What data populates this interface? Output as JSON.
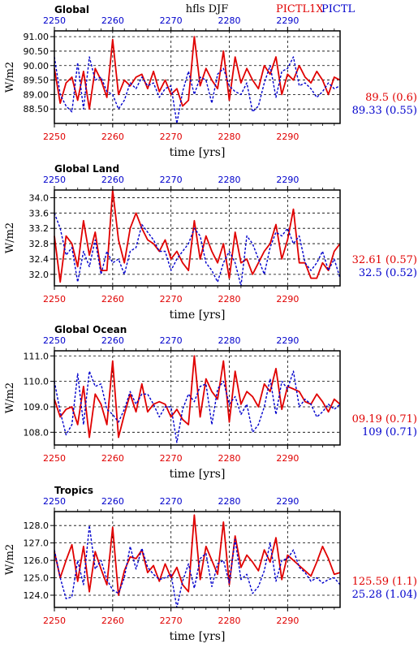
{
  "header": {
    "title": "hfls DJF",
    "legend_red": "PICTL1X",
    "legend_blue": "PICTL",
    "color_red": "#e00000",
    "color_blue": "#0000cc"
  },
  "chart_data": [
    {
      "type": "line",
      "title": "Global",
      "xlabel": "time [yrs]",
      "ylabel": "W/m2",
      "xlim": [
        2250,
        2299
      ],
      "ylim": [
        88.0,
        91.2
      ],
      "yticks": [
        "88.50",
        "89.00",
        "89.50",
        "90.00",
        "90.50",
        "91.00"
      ],
      "xticks": [
        "2250",
        "2260",
        "2270",
        "2280",
        "2290"
      ],
      "grid": true,
      "stat_red": "89.5 (0.6)",
      "stat_blue": "89.33 (0.55)",
      "series": [
        {
          "name": "PICTL1X",
          "color": "#e00000",
          "x": [
            2250,
            2251,
            2252,
            2253,
            2254,
            2255,
            2256,
            2257,
            2258,
            2259,
            2260,
            2261,
            2262,
            2263,
            2264,
            2265,
            2266,
            2267,
            2268,
            2269,
            2270,
            2271,
            2272,
            2273,
            2274,
            2275,
            2276,
            2277,
            2278,
            2279,
            2280,
            2281,
            2282,
            2283,
            2284,
            2285,
            2286,
            2287,
            2288,
            2289,
            2290,
            2291,
            2292,
            2293,
            2294,
            2295,
            2296,
            2297,
            2298,
            2299
          ],
          "values": [
            89.9,
            88.7,
            89.4,
            89.6,
            88.8,
            89.8,
            88.5,
            89.9,
            89.5,
            88.9,
            90.9,
            89.0,
            89.5,
            89.3,
            89.6,
            89.7,
            89.2,
            89.8,
            89.1,
            89.5,
            89.0,
            89.2,
            88.6,
            88.8,
            91.0,
            89.3,
            89.9,
            89.5,
            89.2,
            90.5,
            88.8,
            90.3,
            89.4,
            89.9,
            89.5,
            89.2,
            90.0,
            89.7,
            90.3,
            89.0,
            89.7,
            89.5,
            90.0,
            89.6,
            89.4,
            89.8,
            89.5,
            89.0,
            89.6,
            89.5
          ]
        },
        {
          "name": "PICTL",
          "color": "#0000cc",
          "x": [
            2250,
            2251,
            2252,
            2253,
            2254,
            2255,
            2256,
            2257,
            2258,
            2259,
            2260,
            2261,
            2262,
            2263,
            2264,
            2265,
            2266,
            2267,
            2268,
            2269,
            2270,
            2271,
            2272,
            2273,
            2274,
            2275,
            2276,
            2277,
            2278,
            2279,
            2280,
            2281,
            2282,
            2283,
            2284,
            2285,
            2286,
            2287,
            2288,
            2289,
            2290,
            2291,
            2292,
            2293,
            2294,
            2295,
            2296,
            2297,
            2298,
            2299
          ],
          "values": [
            90.3,
            89.0,
            88.6,
            88.4,
            90.1,
            88.5,
            90.3,
            89.5,
            89.6,
            89.1,
            89.0,
            88.5,
            88.8,
            89.4,
            89.2,
            89.6,
            89.3,
            89.4,
            88.9,
            89.2,
            89.3,
            88.0,
            89.1,
            89.8,
            89.0,
            89.6,
            89.5,
            88.7,
            89.7,
            89.9,
            89.3,
            89.1,
            89.0,
            89.4,
            88.4,
            88.6,
            89.4,
            90.0,
            88.9,
            89.8,
            89.9,
            90.3,
            89.3,
            89.4,
            89.2,
            88.9,
            89.1,
            89.4,
            89.2,
            89.3
          ]
        }
      ]
    },
    {
      "type": "line",
      "title": "Global Land",
      "xlabel": "time [yrs]",
      "ylabel": "W/m2",
      "xlim": [
        2250,
        2299
      ],
      "ylim": [
        31.7,
        34.2
      ],
      "yticks": [
        "32.0",
        "32.4",
        "32.8",
        "33.2",
        "33.6",
        "34.0"
      ],
      "xticks": [
        "2250",
        "2260",
        "2270",
        "2280",
        "2290"
      ],
      "grid": true,
      "stat_red": "32.61 (0.57)",
      "stat_blue": "32.5 (0.52)",
      "series": [
        {
          "name": "PICTL1X",
          "color": "#e00000",
          "x": [
            2250,
            2251,
            2252,
            2253,
            2254,
            2255,
            2256,
            2257,
            2258,
            2259,
            2260,
            2261,
            2262,
            2263,
            2264,
            2265,
            2266,
            2267,
            2268,
            2269,
            2270,
            2271,
            2272,
            2273,
            2274,
            2275,
            2276,
            2277,
            2278,
            2279,
            2280,
            2281,
            2282,
            2283,
            2284,
            2285,
            2286,
            2287,
            2288,
            2289,
            2290,
            2291,
            2292,
            2293,
            2294,
            2295,
            2296,
            2297,
            2298,
            2299
          ],
          "values": [
            33.0,
            31.8,
            33.0,
            32.8,
            32.2,
            33.4,
            32.5,
            33.1,
            32.1,
            32.1,
            34.2,
            32.9,
            32.3,
            33.2,
            33.6,
            33.2,
            32.9,
            32.8,
            32.6,
            32.9,
            32.4,
            32.6,
            32.3,
            32.1,
            33.4,
            32.4,
            33.0,
            32.6,
            32.3,
            32.8,
            31.9,
            33.1,
            32.3,
            32.4,
            32.0,
            32.3,
            32.6,
            32.8,
            33.3,
            32.4,
            32.9,
            33.7,
            32.3,
            32.3,
            31.9,
            31.9,
            32.3,
            32.1,
            32.6,
            32.8
          ]
        },
        {
          "name": "PICTL",
          "color": "#0000cc",
          "x": [
            2250,
            2251,
            2252,
            2253,
            2254,
            2255,
            2256,
            2257,
            2258,
            2259,
            2260,
            2261,
            2262,
            2263,
            2264,
            2265,
            2266,
            2267,
            2268,
            2269,
            2270,
            2271,
            2272,
            2273,
            2274,
            2275,
            2276,
            2277,
            2278,
            2279,
            2280,
            2281,
            2282,
            2283,
            2284,
            2285,
            2286,
            2287,
            2288,
            2289,
            2290,
            2291,
            2292,
            2293,
            2294,
            2295,
            2296,
            2297,
            2298,
            2299
          ],
          "values": [
            33.6,
            33.2,
            32.5,
            32.7,
            31.8,
            32.6,
            32.2,
            32.9,
            32.0,
            32.6,
            32.3,
            32.4,
            32.0,
            32.6,
            32.7,
            33.3,
            33.1,
            32.9,
            32.6,
            32.6,
            32.1,
            32.4,
            32.6,
            32.8,
            33.2,
            33.0,
            32.3,
            32.1,
            31.8,
            32.3,
            32.6,
            32.3,
            31.7,
            33.0,
            32.8,
            32.4,
            32.0,
            32.7,
            33.1,
            33.0,
            33.2,
            32.8,
            33.0,
            32.3,
            32.1,
            32.3,
            32.6,
            32.1,
            32.4,
            31.9
          ]
        }
      ]
    },
    {
      "type": "line",
      "title": "Global Ocean",
      "xlabel": "time [yrs]",
      "ylabel": "W/m2",
      "xlim": [
        2250,
        2299
      ],
      "ylim": [
        107.5,
        111.2
      ],
      "yticks": [
        "108.0",
        "109.0",
        "110.0",
        "111.0"
      ],
      "xticks": [
        "2250",
        "2260",
        "2270",
        "2280",
        "2290"
      ],
      "grid": true,
      "stat_red": "09.19 (0.71)",
      "stat_blue": "109 (0.71)",
      "series": [
        {
          "name": "PICTL1X",
          "color": "#e00000",
          "x": [
            2250,
            2251,
            2252,
            2253,
            2254,
            2255,
            2256,
            2257,
            2258,
            2259,
            2260,
            2261,
            2262,
            2263,
            2264,
            2265,
            2266,
            2267,
            2268,
            2269,
            2270,
            2271,
            2272,
            2273,
            2274,
            2275,
            2276,
            2277,
            2278,
            2279,
            2280,
            2281,
            2282,
            2283,
            2284,
            2285,
            2286,
            2287,
            2288,
            2289,
            2290,
            2291,
            2292,
            2293,
            2294,
            2295,
            2296,
            2297,
            2298,
            2299
          ],
          "values": [
            109.3,
            108.6,
            108.9,
            109.0,
            108.3,
            109.8,
            107.8,
            109.5,
            109.1,
            108.3,
            110.8,
            107.8,
            108.7,
            109.5,
            108.8,
            109.9,
            108.8,
            109.1,
            109.2,
            109.1,
            108.6,
            108.9,
            108.5,
            108.3,
            111.0,
            108.6,
            110.1,
            109.6,
            109.3,
            110.8,
            108.4,
            110.4,
            109.1,
            109.6,
            109.4,
            109.0,
            109.9,
            109.6,
            110.5,
            108.9,
            109.8,
            109.7,
            109.6,
            109.2,
            109.1,
            109.5,
            109.2,
            108.8,
            109.3,
            109.1
          ]
        },
        {
          "name": "PICTL",
          "color": "#0000cc",
          "x": [
            2250,
            2251,
            2252,
            2253,
            2254,
            2255,
            2256,
            2257,
            2258,
            2259,
            2260,
            2261,
            2262,
            2263,
            2264,
            2265,
            2266,
            2267,
            2268,
            2269,
            2270,
            2271,
            2272,
            2273,
            2274,
            2275,
            2276,
            2277,
            2278,
            2279,
            2280,
            2281,
            2282,
            2283,
            2284,
            2285,
            2286,
            2287,
            2288,
            2289,
            2290,
            2291,
            2292,
            2293,
            2294,
            2295,
            2296,
            2297,
            2298,
            2299
          ],
          "values": [
            110.0,
            108.8,
            107.9,
            108.3,
            110.3,
            108.3,
            110.4,
            109.8,
            109.9,
            108.9,
            108.7,
            108.4,
            108.9,
            109.6,
            109.1,
            109.5,
            109.5,
            109.1,
            108.6,
            109.0,
            109.0,
            107.6,
            108.9,
            109.5,
            109.2,
            109.8,
            109.9,
            108.3,
            109.7,
            110.0,
            109.1,
            109.4,
            108.7,
            109.1,
            108.0,
            108.3,
            109.0,
            110.1,
            108.7,
            110.0,
            109.7,
            110.4,
            109.0,
            109.3,
            109.1,
            108.6,
            108.8,
            109.1,
            108.9,
            109.1
          ]
        }
      ]
    },
    {
      "type": "line",
      "title": "Tropics",
      "xlabel": "time [yrs]",
      "ylabel": "W/m2",
      "xlim": [
        2250,
        2299
      ],
      "ylim": [
        123.3,
        128.8
      ],
      "yticks": [
        "124.0",
        "125.0",
        "126.0",
        "127.0",
        "128.0"
      ],
      "xticks": [
        "2250",
        "2260",
        "2270",
        "2280",
        "2290"
      ],
      "grid": true,
      "stat_red": "125.59 (1.1)",
      "stat_blue": "25.28 (1.04)",
      "series": [
        {
          "name": "PICTL1X",
          "color": "#e00000",
          "x": [
            2250,
            2251,
            2252,
            2253,
            2254,
            2255,
            2256,
            2257,
            2258,
            2259,
            2260,
            2261,
            2262,
            2263,
            2264,
            2265,
            2266,
            2267,
            2268,
            2269,
            2270,
            2271,
            2272,
            2273,
            2274,
            2275,
            2276,
            2277,
            2278,
            2279,
            2280,
            2281,
            2282,
            2283,
            2284,
            2285,
            2286,
            2287,
            2288,
            2289,
            2290,
            2291,
            2292,
            2293,
            2294,
            2295,
            2296,
            2297,
            2298,
            2299
          ],
          "values": [
            126.5,
            125.0,
            126.0,
            126.9,
            124.8,
            126.8,
            124.2,
            126.5,
            125.5,
            124.6,
            127.9,
            124.0,
            125.4,
            126.2,
            126.1,
            126.6,
            125.3,
            125.7,
            124.8,
            125.8,
            125.0,
            125.6,
            124.6,
            124.2,
            128.6,
            124.9,
            126.8,
            126.0,
            125.2,
            128.2,
            124.6,
            127.4,
            125.6,
            126.3,
            125.9,
            125.4,
            126.6,
            125.9,
            127.3,
            124.9,
            126.3,
            126.0,
            125.7,
            125.4,
            125.1,
            125.9,
            126.8,
            126.1,
            125.2,
            125.3
          ]
        },
        {
          "name": "PICTL",
          "color": "#0000cc",
          "x": [
            2250,
            2251,
            2252,
            2253,
            2254,
            2255,
            2256,
            2257,
            2258,
            2259,
            2260,
            2261,
            2262,
            2263,
            2264,
            2265,
            2266,
            2267,
            2268,
            2269,
            2270,
            2271,
            2272,
            2273,
            2274,
            2275,
            2276,
            2277,
            2278,
            2279,
            2280,
            2281,
            2282,
            2283,
            2284,
            2285,
            2286,
            2287,
            2288,
            2289,
            2290,
            2291,
            2292,
            2293,
            2294,
            2295,
            2296,
            2297,
            2298,
            2299
          ],
          "values": [
            126.6,
            125.0,
            123.8,
            123.9,
            126.0,
            124.6,
            128.0,
            125.5,
            126.0,
            124.9,
            124.3,
            124.1,
            125.0,
            126.8,
            125.5,
            126.7,
            125.6,
            125.2,
            124.9,
            125.0,
            125.2,
            123.3,
            124.8,
            125.8,
            124.4,
            126.1,
            126.4,
            124.5,
            125.8,
            126.0,
            124.7,
            127.2,
            124.9,
            125.2,
            124.1,
            124.5,
            125.4,
            127.0,
            124.8,
            126.0,
            126.1,
            126.6,
            125.6,
            125.3,
            124.8,
            125.0,
            124.7,
            124.9,
            125.0,
            124.6
          ]
        }
      ]
    }
  ]
}
